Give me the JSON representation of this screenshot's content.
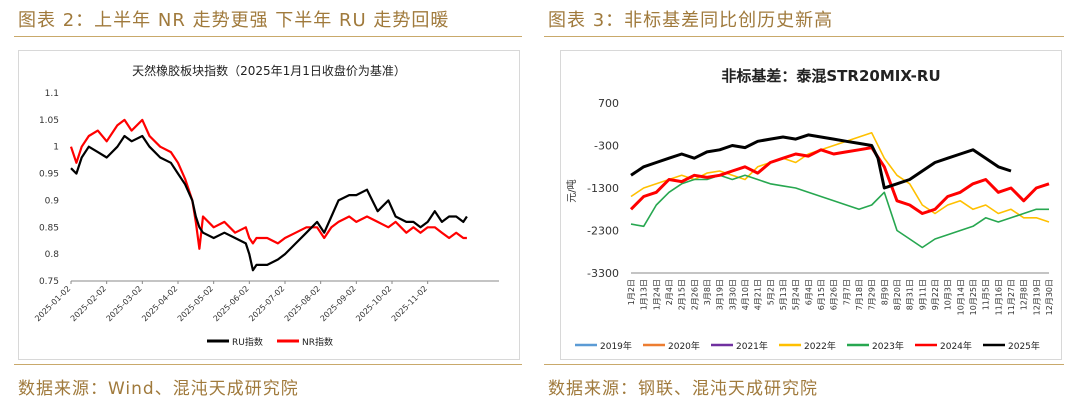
{
  "left": {
    "caption": "图表 2：上半年 NR 走势更强 下半年 RU 走势回暖",
    "source": "数据来源：Wind、混沌天成研究院",
    "chart_data": {
      "type": "line",
      "title": "天然橡胶板块指数（2025年1月1日收盘价为基准）",
      "ylim": [
        0.75,
        1.1
      ],
      "yticks": [
        0.75,
        0.8,
        0.85,
        0.9,
        0.95,
        1,
        1.05,
        1.1
      ],
      "xticks": [
        "2025-01-02",
        "2025-02-02",
        "2025-03-02",
        "2025-04-02",
        "2025-05-02",
        "2025-06-02",
        "2025-07-02",
        "2025-08-02",
        "2025-09-02",
        "2025-10-02",
        "2025-11-02"
      ],
      "x_months": [
        0,
        1,
        2,
        3,
        4,
        5,
        6,
        7,
        8,
        9,
        10,
        11,
        12
      ],
      "series": [
        {
          "name": "RU指数",
          "color": "#000000",
          "x": [
            0,
            0.15,
            0.3,
            0.5,
            0.75,
            1.0,
            1.3,
            1.5,
            1.7,
            2.0,
            2.2,
            2.5,
            2.8,
            3.0,
            3.2,
            3.4,
            3.5,
            3.6,
            3.7,
            4.0,
            4.3,
            4.6,
            4.9,
            5.0,
            5.1,
            5.2,
            5.5,
            5.8,
            6.0,
            6.3,
            6.6,
            6.9,
            7.1,
            7.3,
            7.5,
            7.8,
            8.0,
            8.3,
            8.6,
            8.9,
            9.1,
            9.4,
            9.6,
            9.8,
            10.0,
            10.2,
            10.4,
            10.6,
            10.8,
            11.0,
            11.1
          ],
          "values": [
            0.96,
            0.95,
            0.98,
            1.0,
            0.99,
            0.98,
            1.0,
            1.02,
            1.01,
            1.02,
            1.0,
            0.98,
            0.97,
            0.95,
            0.93,
            0.9,
            0.87,
            0.85,
            0.84,
            0.83,
            0.84,
            0.83,
            0.82,
            0.8,
            0.77,
            0.78,
            0.78,
            0.79,
            0.8,
            0.82,
            0.84,
            0.86,
            0.84,
            0.87,
            0.9,
            0.91,
            0.91,
            0.92,
            0.88,
            0.9,
            0.87,
            0.86,
            0.86,
            0.85,
            0.86,
            0.88,
            0.86,
            0.87,
            0.87,
            0.86,
            0.87
          ]
        },
        {
          "name": "NR指数",
          "color": "#ff0000",
          "x": [
            0,
            0.15,
            0.3,
            0.5,
            0.75,
            1.0,
            1.3,
            1.5,
            1.7,
            2.0,
            2.2,
            2.5,
            2.8,
            3.0,
            3.2,
            3.4,
            3.5,
            3.6,
            3.7,
            4.0,
            4.3,
            4.6,
            4.9,
            5.0,
            5.1,
            5.2,
            5.5,
            5.8,
            6.0,
            6.3,
            6.6,
            6.9,
            7.1,
            7.3,
            7.5,
            7.8,
            8.0,
            8.3,
            8.6,
            8.9,
            9.1,
            9.4,
            9.6,
            9.8,
            10.0,
            10.2,
            10.4,
            10.6,
            10.8,
            11.0,
            11.1
          ],
          "values": [
            1.0,
            0.97,
            1.0,
            1.02,
            1.03,
            1.01,
            1.04,
            1.05,
            1.03,
            1.05,
            1.02,
            1.0,
            0.99,
            0.97,
            0.94,
            0.9,
            0.86,
            0.81,
            0.87,
            0.85,
            0.86,
            0.84,
            0.85,
            0.83,
            0.82,
            0.83,
            0.83,
            0.82,
            0.83,
            0.84,
            0.85,
            0.85,
            0.83,
            0.85,
            0.86,
            0.87,
            0.86,
            0.87,
            0.86,
            0.85,
            0.86,
            0.84,
            0.85,
            0.84,
            0.85,
            0.85,
            0.84,
            0.83,
            0.84,
            0.83,
            0.83
          ]
        }
      ]
    }
  },
  "right": {
    "caption": "图表 3：非标基差同比创历史新高",
    "source": "数据来源：钢联、混沌天成研究院",
    "chart_data": {
      "type": "line",
      "title": "非标基差：泰混STR20MIX-RU",
      "ylabel": "元/吨",
      "ylim": [
        -3300,
        700
      ],
      "yticks": [
        700,
        -300,
        -1300,
        -2300,
        -3300
      ],
      "xticks": [
        "1月2日",
        "1月13日",
        "1月24日",
        "2月4日",
        "2月15日",
        "2月26日",
        "3月8日",
        "3月19日",
        "3月30日",
        "4月10日",
        "4月21日",
        "5月2日",
        "5月13日",
        "5月24日",
        "6月4日",
        "6月15日",
        "6月26日",
        "7月7日",
        "7月18日",
        "7月29日",
        "8月9日",
        "8月20日",
        "8月31日",
        "9月11日",
        "9月22日",
        "10月3日",
        "10月14日",
        "10月25日",
        "11月5日",
        "11月16日",
        "11月27日",
        "12月8日",
        "12月19日",
        "12月30日"
      ],
      "series": [
        {
          "name": "2019年",
          "color": "#5b9bd5",
          "x": [],
          "values": []
        },
        {
          "name": "2020年",
          "color": "#ed7d31",
          "x": [],
          "values": []
        },
        {
          "name": "2021年",
          "color": "#7030a0",
          "x": [],
          "values": []
        },
        {
          "name": "2022年",
          "color": "#ffc000",
          "x": [
            0,
            1,
            2,
            3,
            4,
            5,
            6,
            7,
            8,
            9,
            10,
            11,
            12,
            13,
            14,
            15,
            16,
            17,
            18,
            19,
            20,
            21,
            22,
            23,
            24,
            25,
            26,
            27,
            28,
            29,
            30,
            31,
            32,
            33
          ],
          "values": [
            -1500,
            -1300,
            -1200,
            -1100,
            -1000,
            -1100,
            -950,
            -900,
            -1000,
            -1100,
            -800,
            -700,
            -600,
            -700,
            -500,
            -400,
            -300,
            -200,
            -100,
            0,
            -600,
            -1000,
            -1200,
            -1700,
            -1900,
            -1700,
            -1600,
            -1800,
            -1700,
            -1900,
            -1800,
            -2000,
            -2000,
            -2100
          ]
        },
        {
          "name": "2023年",
          "color": "#27a750",
          "x": [
            0,
            1,
            2,
            3,
            4,
            5,
            6,
            7,
            8,
            9,
            10,
            11,
            12,
            13,
            14,
            15,
            16,
            17,
            18,
            19,
            20,
            21,
            22,
            23,
            24,
            25,
            26,
            27,
            28,
            29,
            30,
            31,
            32,
            33
          ],
          "values": [
            -2150,
            -2200,
            -1700,
            -1400,
            -1200,
            -1100,
            -1100,
            -1000,
            -1100,
            -1000,
            -1100,
            -1200,
            -1250,
            -1300,
            -1400,
            -1500,
            -1600,
            -1700,
            -1800,
            -1700,
            -1400,
            -2300,
            -2500,
            -2700,
            -2500,
            -2400,
            -2300,
            -2200,
            -2000,
            -2100,
            -2000,
            -1900,
            -1800,
            -1800
          ]
        },
        {
          "name": "2024年",
          "color": "#ff0000",
          "x": [
            0,
            1,
            2,
            3,
            4,
            5,
            6,
            7,
            8,
            9,
            10,
            11,
            12,
            13,
            14,
            15,
            16,
            17,
            18,
            19,
            20,
            21,
            22,
            23,
            24,
            25,
            26,
            27,
            28,
            29,
            30,
            31,
            32,
            33
          ],
          "values": [
            -1800,
            -1500,
            -1400,
            -1100,
            -1150,
            -1000,
            -1050,
            -1000,
            -900,
            -800,
            -950,
            -700,
            -600,
            -500,
            -550,
            -400,
            -500,
            -450,
            -400,
            -350,
            -800,
            -1600,
            -1700,
            -1900,
            -1800,
            -1500,
            -1400,
            -1200,
            -1100,
            -1400,
            -1300,
            -1600,
            -1300,
            -1200
          ]
        },
        {
          "name": "2025年",
          "color": "#000000",
          "x": [
            0,
            1,
            2,
            3,
            4,
            5,
            6,
            7,
            8,
            9,
            10,
            11,
            12,
            13,
            14,
            15,
            16,
            17,
            18,
            19,
            19.5,
            20,
            21,
            22,
            23,
            24,
            25,
            26,
            27,
            28,
            29,
            30
          ],
          "values": [
            -1000,
            -800,
            -700,
            -600,
            -500,
            -600,
            -450,
            -400,
            -300,
            -350,
            -200,
            -150,
            -100,
            -150,
            -50,
            -100,
            -150,
            -200,
            -250,
            -300,
            -600,
            -1300,
            -1200,
            -1100,
            -900,
            -700,
            -600,
            -500,
            -400,
            -600,
            -800,
            -900
          ]
        }
      ]
    }
  }
}
